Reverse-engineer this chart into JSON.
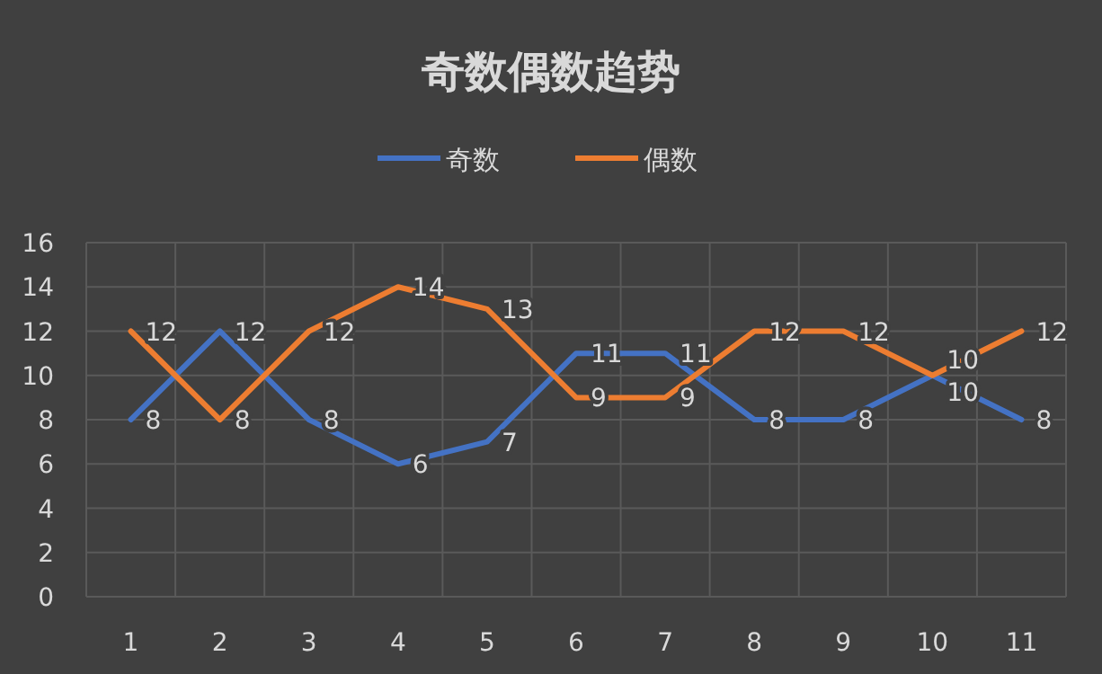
{
  "chart_data": {
    "type": "line",
    "title": "奇数偶数趋势",
    "categories": [
      "1",
      "2",
      "3",
      "4",
      "5",
      "6",
      "7",
      "8",
      "9",
      "10",
      "11"
    ],
    "series": [
      {
        "name": "奇数",
        "color": "#4472c4",
        "values": [
          8,
          12,
          8,
          6,
          7,
          11,
          11,
          8,
          8,
          10,
          8
        ]
      },
      {
        "name": "偶数",
        "color": "#ed7d31",
        "values": [
          12,
          8,
          12,
          14,
          13,
          9,
          9,
          12,
          12,
          10,
          12
        ]
      }
    ],
    "ylim": [
      0,
      16
    ],
    "yticks": [
      0,
      2,
      4,
      6,
      8,
      10,
      12,
      14,
      16
    ],
    "grid": true,
    "legend": "top",
    "data_labels": true,
    "marker": "none",
    "line_style": "solid"
  }
}
